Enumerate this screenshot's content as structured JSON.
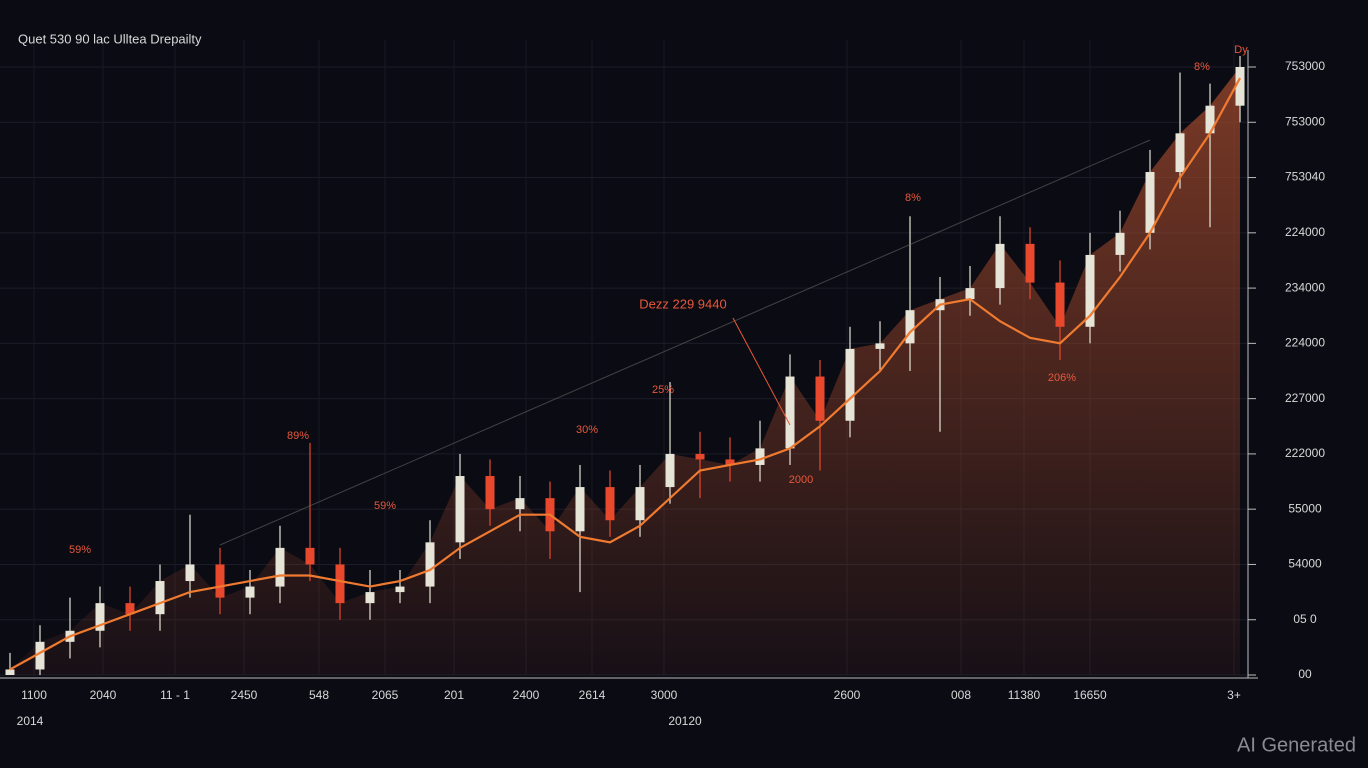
{
  "chart_data": {
    "type": "candlestick",
    "title": "Quet 530 90 lac Ulltea Drepailty",
    "open": [
      0.0,
      0.1,
      0.6,
      0.8,
      1.3,
      1.1,
      1.7,
      2.0,
      1.4,
      1.6,
      2.3,
      2.0,
      1.3,
      1.5,
      1.6,
      2.4,
      3.6,
      3.0,
      3.2,
      2.6,
      3.4,
      2.8,
      3.4,
      4.0,
      3.9,
      3.8,
      4.1,
      5.4,
      4.6,
      5.9,
      6.0,
      6.6,
      6.8,
      7.0,
      7.8,
      7.1,
      6.3,
      7.6,
      8.0,
      9.1,
      9.8,
      10.3
    ],
    "high": [
      0.4,
      0.9,
      1.4,
      1.6,
      1.6,
      2.0,
      2.9,
      2.3,
      1.9,
      2.7,
      4.2,
      2.3,
      1.9,
      1.9,
      2.8,
      4.0,
      3.9,
      3.6,
      3.5,
      3.8,
      3.7,
      3.8,
      5.3,
      4.4,
      4.3,
      4.6,
      5.8,
      5.7,
      6.3,
      6.4,
      8.3,
      7.2,
      7.4,
      8.3,
      8.1,
      7.5,
      8.0,
      8.4,
      9.5,
      10.9,
      10.7,
      11.2
    ],
    "low": [
      0.0,
      0.0,
      0.3,
      0.5,
      0.8,
      0.8,
      1.4,
      1.1,
      1.1,
      1.3,
      1.7,
      1.0,
      1.0,
      1.3,
      1.3,
      2.1,
      2.7,
      2.6,
      2.1,
      1.5,
      2.5,
      2.5,
      3.1,
      3.2,
      3.5,
      3.5,
      3.8,
      3.7,
      4.3,
      5.5,
      5.5,
      4.4,
      6.5,
      6.7,
      6.8,
      5.7,
      6.0,
      7.3,
      7.7,
      8.8,
      8.1,
      10.0
    ],
    "close": [
      0.1,
      0.6,
      0.8,
      1.3,
      1.1,
      1.7,
      2.0,
      1.4,
      1.6,
      2.3,
      2.0,
      1.3,
      1.5,
      1.6,
      2.4,
      3.6,
      3.0,
      3.2,
      2.6,
      3.4,
      2.8,
      3.4,
      4.0,
      3.9,
      3.8,
      4.1,
      5.4,
      4.6,
      5.9,
      6.0,
      6.6,
      6.8,
      7.0,
      7.8,
      7.1,
      6.3,
      7.6,
      8.0,
      9.1,
      9.8,
      10.3,
      11.0
    ],
    "up_color": "#e6e4d6",
    "down_color": "#e8492c",
    "area_color": "#a0492c",
    "ma": {
      "color": "#f07a30",
      "values": [
        0.1,
        0.4,
        0.7,
        0.9,
        1.1,
        1.3,
        1.5,
        1.6,
        1.7,
        1.8,
        1.8,
        1.7,
        1.6,
        1.7,
        1.9,
        2.3,
        2.6,
        2.9,
        2.9,
        2.5,
        2.4,
        2.7,
        3.2,
        3.7,
        3.8,
        3.9,
        4.1,
        4.5,
        5.0,
        5.5,
        6.2,
        6.7,
        6.8,
        6.4,
        6.1,
        6.0,
        6.5,
        7.2,
        8.0,
        9.0,
        9.8,
        10.8
      ]
    },
    "xlim": [
      -0.333,
      41.333
    ],
    "ylim": [
      0,
      11
    ],
    "xticks": [
      {
        "value": 0.8,
        "label": "1100"
      },
      {
        "value": 3.1,
        "label": "2040"
      },
      {
        "value": 5.5,
        "label": "11 - 1"
      },
      {
        "value": 7.8,
        "label": "2450"
      },
      {
        "value": 10.3,
        "label": "548"
      },
      {
        "value": 12.5,
        "label": "2065"
      },
      {
        "value": 14.8,
        "label": "201"
      },
      {
        "value": 17.2,
        "label": "2400"
      },
      {
        "value": 19.4,
        "label": "2614"
      },
      {
        "value": 21.8,
        "label": "3000"
      },
      {
        "value": 27.9,
        "label": "2600"
      },
      {
        "value": 31.7,
        "label": "008"
      },
      {
        "value": 33.8,
        "label": "11380"
      },
      {
        "value": 36.0,
        "label": "16650"
      },
      {
        "value": 40.8,
        "label": "3+"
      }
    ],
    "yticks": [
      {
        "value": 11,
        "label": "753000"
      },
      {
        "value": 10,
        "label": "753000"
      },
      {
        "value": 9,
        "label": "753040"
      },
      {
        "value": 8,
        "label": "224000"
      },
      {
        "value": 7,
        "label": "234000"
      },
      {
        "value": 6,
        "label": "224000"
      },
      {
        "value": 5,
        "label": "227000"
      },
      {
        "value": 4,
        "label": "222000"
      },
      {
        "value": 3,
        "label": "55000"
      },
      {
        "value": 2,
        "label": "54000"
      },
      {
        "value": 1,
        "label": "05 0"
      },
      {
        "value": 0,
        "label": "00"
      }
    ],
    "grid": true,
    "annotations": [
      "59%",
      "89%",
      "59%",
      "30%",
      "25%",
      "Dezz 229 9440",
      "2000",
      "8%",
      "206%",
      "8%",
      "Dy",
      "2014",
      "20120"
    ],
    "watermark": "AI Generated"
  }
}
